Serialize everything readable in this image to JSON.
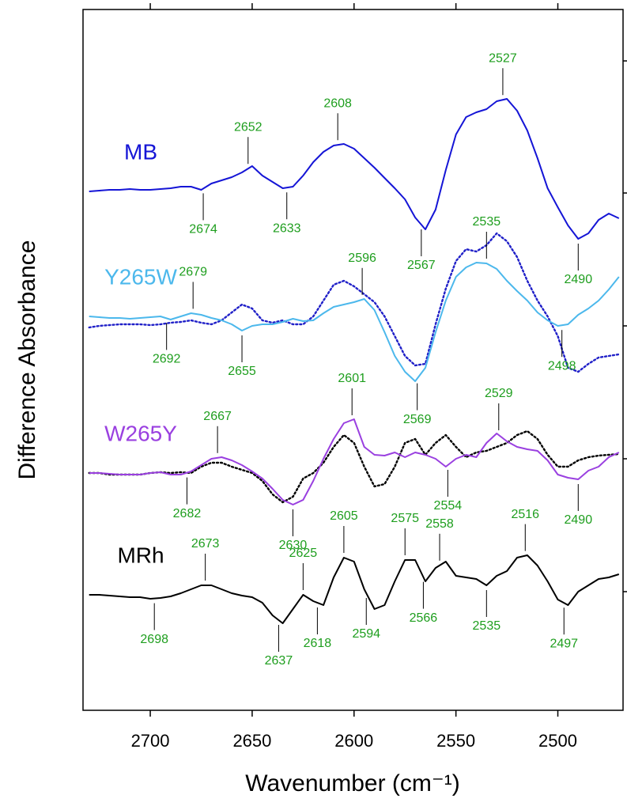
{
  "chart_data": {
    "type": "line",
    "xlabel": "Wavenumber (cm⁻¹)",
    "ylabel": "Difference Absorbance",
    "xlim": [
      2733,
      2468
    ],
    "xticks": [
      2700,
      2650,
      2600,
      2550,
      2500
    ],
    "ylim": [
      0,
      886
    ],
    "yticks": [
      150,
      318,
      486,
      654,
      821
    ],
    "x": [
      2730,
      2725,
      2720,
      2715,
      2710,
      2705,
      2700,
      2695,
      2690,
      2685,
      2680,
      2675,
      2670,
      2665,
      2660,
      2655,
      2650,
      2645,
      2640,
      2635,
      2630,
      2625,
      2620,
      2615,
      2610,
      2605,
      2600,
      2595,
      2590,
      2585,
      2580,
      2575,
      2570,
      2565,
      2560,
      2555,
      2550,
      2545,
      2540,
      2535,
      2530,
      2525,
      2520,
      2515,
      2510,
      2505,
      2500,
      2495,
      2490,
      2485,
      2480,
      2475,
      2470
    ],
    "series": [
      {
        "name": "MB",
        "color": "#1515d6",
        "dash": "solid",
        "values": [
          656,
          657,
          658,
          658,
          659,
          658,
          658,
          659,
          660,
          662,
          662,
          658,
          666,
          670,
          674,
          680,
          688,
          676,
          668,
          660,
          662,
          676,
          693,
          706,
          714,
          716,
          710,
          698,
          686,
          673,
          660,
          646,
          623,
          608,
          633,
          683,
          728,
          750,
          756,
          760,
          770,
          773,
          758,
          733,
          698,
          660,
          636,
          613,
          596,
          603,
          620,
          628,
          622
        ],
        "annotations": [
          {
            "x": 2674,
            "side": "below"
          },
          {
            "x": 2652,
            "side": "above"
          },
          {
            "x": 2633,
            "side": "below"
          },
          {
            "x": 2608,
            "side": "above"
          },
          {
            "x": 2567,
            "side": "below"
          },
          {
            "x": 2527,
            "side": "above"
          },
          {
            "x": 2490,
            "side": "below"
          }
        ]
      },
      {
        "color": "#2020c8",
        "dash": "dotted",
        "values": [
          484,
          486,
          487,
          488,
          488,
          488,
          487,
          488,
          490,
          491,
          493,
          490,
          488,
          493,
          503,
          513,
          508,
          493,
          490,
          493,
          488,
          488,
          498,
          518,
          538,
          543,
          536,
          526,
          516,
          498,
          473,
          448,
          436,
          438,
          488,
          533,
          568,
          583,
          580,
          588,
          603,
          593,
          573,
          543,
          518,
          498,
          473,
          433,
          428,
          438,
          446,
          448,
          450
        ]
      },
      {
        "name": "Y265W",
        "color": "#4cb8ec",
        "dash": "solid",
        "values": [
          498,
          497,
          496,
          496,
          495,
          496,
          497,
          498,
          494,
          498,
          502,
          500,
          496,
          493,
          488,
          480,
          486,
          488,
          488,
          491,
          495,
          492,
          493,
          502,
          510,
          513,
          516,
          520,
          506,
          478,
          448,
          428,
          416,
          433,
          478,
          518,
          548,
          560,
          566,
          565,
          558,
          543,
          530,
          518,
          503,
          493,
          486,
          488,
          500,
          508,
          518,
          532,
          548
        ],
        "annotations": [
          {
            "x": 2679,
            "side": "above"
          },
          {
            "x": 2692,
            "side": "below"
          },
          {
            "x": 2655,
            "side": "below"
          },
          {
            "x": 2596,
            "side": "above"
          },
          {
            "x": 2569,
            "side": "below"
          },
          {
            "x": 2535,
            "side": "above"
          },
          {
            "x": 2498,
            "side": "below"
          }
        ]
      },
      {
        "color": "#000000",
        "dash": "dotted",
        "values": [
          300,
          300,
          298,
          298,
          298,
          298,
          300,
          301,
          300,
          301,
          300,
          308,
          313,
          313,
          308,
          304,
          300,
          290,
          273,
          263,
          270,
          293,
          300,
          313,
          333,
          348,
          338,
          308,
          283,
          286,
          308,
          338,
          343,
          323,
          338,
          348,
          333,
          320,
          326,
          328,
          333,
          338,
          348,
          353,
          343,
          323,
          308,
          308,
          316,
          320,
          322,
          323,
          324
        ]
      },
      {
        "name": "W265Y",
        "color": "#9a40e0",
        "dash": "solid",
        "values": [
          300,
          300,
          299,
          298,
          298,
          298,
          300,
          301,
          298,
          298,
          302,
          310,
          318,
          320,
          316,
          310,
          302,
          293,
          280,
          266,
          260,
          266,
          290,
          318,
          343,
          363,
          368,
          333,
          323,
          322,
          326,
          320,
          326,
          323,
          318,
          308,
          318,
          323,
          320,
          338,
          350,
          340,
          333,
          330,
          328,
          316,
          298,
          294,
          292,
          303,
          308,
          320,
          326
        ],
        "annotations": [
          {
            "x": 2667,
            "side": "above"
          },
          {
            "x": 2682,
            "side": "below"
          },
          {
            "x": 2630,
            "side": "below"
          },
          {
            "x": 2601,
            "side": "above"
          },
          {
            "x": 2554,
            "side": "below"
          },
          {
            "x": 2529,
            "side": "above"
          },
          {
            "x": 2490,
            "side": "below"
          }
        ]
      },
      {
        "name": "MRh",
        "color": "#000000",
        "dash": "solid",
        "values": [
          146,
          146,
          145,
          144,
          143,
          143,
          141,
          142,
          144,
          148,
          153,
          158,
          158,
          153,
          148,
          145,
          143,
          136,
          120,
          110,
          128,
          146,
          138,
          133,
          168,
          193,
          188,
          153,
          128,
          133,
          163,
          190,
          190,
          163,
          180,
          188,
          170,
          168,
          166,
          158,
          170,
          176,
          193,
          196,
          183,
          163,
          140,
          133,
          150,
          158,
          166,
          168,
          172
        ],
        "annotations": [
          {
            "x": 2673,
            "side": "above"
          },
          {
            "x": 2698,
            "side": "below"
          },
          {
            "x": 2637,
            "side": "below"
          },
          {
            "x": 2625,
            "side": "above"
          },
          {
            "x": 2618,
            "side": "below"
          },
          {
            "x": 2605,
            "side": "above"
          },
          {
            "x": 2594,
            "side": "below"
          },
          {
            "x": 2575,
            "side": "above"
          },
          {
            "x": 2566,
            "side": "below"
          },
          {
            "x": 2558,
            "side": "above"
          },
          {
            "x": 2535,
            "side": "below"
          },
          {
            "x": 2516,
            "side": "above"
          },
          {
            "x": 2497,
            "side": "below"
          }
        ]
      }
    ]
  }
}
